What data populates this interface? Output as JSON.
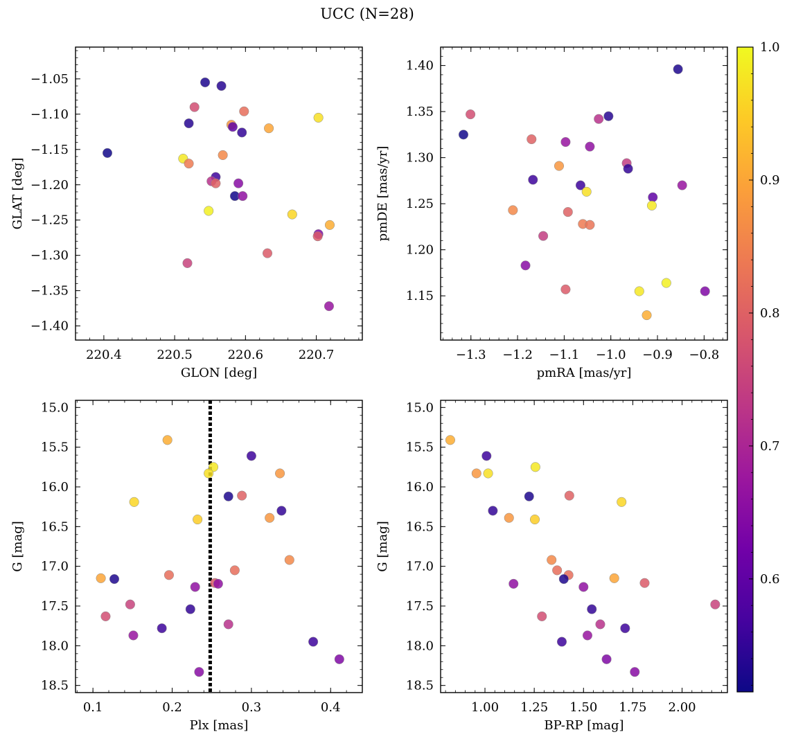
{
  "figure": {
    "title": "UCC (N=28)"
  },
  "colorbar": {
    "colormap": "plasma",
    "range": [
      0.515,
      1.0
    ],
    "ticks": [
      "0.6",
      "0.7",
      "0.8",
      "0.9",
      "1.0"
    ],
    "tick_values": [
      0.6,
      0.7,
      0.8,
      0.9,
      1.0
    ],
    "gradient_colors": [
      "#0d0887",
      "#46039f",
      "#7201a8",
      "#9c179e",
      "#bd3786",
      "#d8576b",
      "#ed7953",
      "#fb9f3a",
      "#fdca26",
      "#f0f921"
    ]
  },
  "chart_data": [
    {
      "type": "scatter",
      "id": "glon-glat",
      "xlabel": "GLON [deg]",
      "ylabel": "GLAT [deg]",
      "xlim": [
        220.36,
        220.765
      ],
      "ylim": [
        -1.42,
        -1.005
      ],
      "xticks": [
        220.4,
        220.5,
        220.6,
        220.7
      ],
      "xticklabels": [
        "220.4",
        "220.5",
        "220.6",
        "220.7"
      ],
      "yticks": [
        -1.05,
        -1.1,
        -1.15,
        -1.2,
        -1.25,
        -1.3,
        -1.35,
        -1.4
      ],
      "yticklabels": [
        "−1.05",
        "−1.10",
        "−1.15",
        "−1.20",
        "−1.25",
        "−1.30",
        "−1.35",
        "−1.40"
      ],
      "points": [
        {
          "x": 220.543,
          "y": -1.055,
          "c": 0.53
        },
        {
          "x": 220.566,
          "y": -1.06,
          "c": 0.54
        },
        {
          "x": 220.528,
          "y": -1.09,
          "c": 0.77
        },
        {
          "x": 220.598,
          "y": -1.096,
          "c": 0.82
        },
        {
          "x": 220.703,
          "y": -1.105,
          "c": 0.97
        },
        {
          "x": 220.52,
          "y": -1.113,
          "c": 0.54
        },
        {
          "x": 220.58,
          "y": -1.115,
          "c": 0.88
        },
        {
          "x": 220.582,
          "y": -1.118,
          "c": 0.6
        },
        {
          "x": 220.633,
          "y": -1.12,
          "c": 0.9
        },
        {
          "x": 220.595,
          "y": -1.126,
          "c": 0.55
        },
        {
          "x": 220.405,
          "y": -1.155,
          "c": 0.52
        },
        {
          "x": 220.568,
          "y": -1.158,
          "c": 0.86
        },
        {
          "x": 220.512,
          "y": -1.163,
          "c": 0.98
        },
        {
          "x": 220.52,
          "y": -1.17,
          "c": 0.84
        },
        {
          "x": 220.558,
          "y": -1.189,
          "c": 0.56
        },
        {
          "x": 220.552,
          "y": -1.195,
          "c": 0.72
        },
        {
          "x": 220.558,
          "y": -1.198,
          "c": 0.8
        },
        {
          "x": 220.59,
          "y": -1.198,
          "c": 0.65
        },
        {
          "x": 220.585,
          "y": -1.216,
          "c": 0.52
        },
        {
          "x": 220.596,
          "y": -1.216,
          "c": 0.66
        },
        {
          "x": 220.548,
          "y": -1.237,
          "c": 0.99
        },
        {
          "x": 220.666,
          "y": -1.242,
          "c": 0.96
        },
        {
          "x": 220.719,
          "y": -1.257,
          "c": 0.91
        },
        {
          "x": 220.703,
          "y": -1.27,
          "c": 0.64
        },
        {
          "x": 220.702,
          "y": -1.273,
          "c": 0.79
        },
        {
          "x": 220.631,
          "y": -1.297,
          "c": 0.79
        },
        {
          "x": 220.518,
          "y": -1.311,
          "c": 0.75
        },
        {
          "x": 220.718,
          "y": -1.372,
          "c": 0.67
        }
      ]
    },
    {
      "type": "scatter",
      "id": "pmra-pmde",
      "xlabel": "pmRA [mas/yr]",
      "ylabel": "pmDE [mas/yr]",
      "xlim": [
        -1.365,
        -0.75
      ],
      "ylim": [
        1.102,
        1.42
      ],
      "xticks": [
        -1.3,
        -1.2,
        -1.1,
        -1.0,
        -0.9,
        -0.8
      ],
      "xticklabels": [
        "−1.3",
        "−1.2",
        "−1.1",
        "−1.0",
        "−0.9",
        "−0.8"
      ],
      "yticks": [
        1.15,
        1.2,
        1.25,
        1.3,
        1.35,
        1.4
      ],
      "yticklabels": [
        "1.15",
        "1.20",
        "1.25",
        "1.30",
        "1.35",
        "1.40"
      ],
      "points": [
        {
          "x": -0.856,
          "y": 1.396,
          "c": 0.53
        },
        {
          "x": -1.301,
          "y": 1.347,
          "c": 0.77
        },
        {
          "x": -1.005,
          "y": 1.345,
          "c": 0.54
        },
        {
          "x": -1.026,
          "y": 1.342,
          "c": 0.72
        },
        {
          "x": -1.316,
          "y": 1.325,
          "c": 0.52
        },
        {
          "x": -1.17,
          "y": 1.32,
          "c": 0.8
        },
        {
          "x": -1.097,
          "y": 1.317,
          "c": 0.67
        },
        {
          "x": -1.045,
          "y": 1.312,
          "c": 0.66
        },
        {
          "x": -0.966,
          "y": 1.294,
          "c": 0.74
        },
        {
          "x": -1.111,
          "y": 1.291,
          "c": 0.88
        },
        {
          "x": -0.963,
          "y": 1.288,
          "c": 0.55
        },
        {
          "x": -1.167,
          "y": 1.276,
          "c": 0.56
        },
        {
          "x": -1.065,
          "y": 1.27,
          "c": 0.56
        },
        {
          "x": -0.847,
          "y": 1.27,
          "c": 0.67
        },
        {
          "x": -1.052,
          "y": 1.263,
          "c": 0.97
        },
        {
          "x": -0.91,
          "y": 1.257,
          "c": 0.6
        },
        {
          "x": -0.912,
          "y": 1.248,
          "c": 0.98
        },
        {
          "x": -1.21,
          "y": 1.243,
          "c": 0.86
        },
        {
          "x": -1.092,
          "y": 1.241,
          "c": 0.8
        },
        {
          "x": -1.06,
          "y": 1.228,
          "c": 0.84
        },
        {
          "x": -1.045,
          "y": 1.227,
          "c": 0.83
        },
        {
          "x": -1.145,
          "y": 1.215,
          "c": 0.74
        },
        {
          "x": -1.183,
          "y": 1.183,
          "c": 0.65
        },
        {
          "x": -0.881,
          "y": 1.164,
          "c": 0.99
        },
        {
          "x": -1.097,
          "y": 1.157,
          "c": 0.79
        },
        {
          "x": -0.939,
          "y": 1.155,
          "c": 0.98
        },
        {
          "x": -0.798,
          "y": 1.155,
          "c": 0.64
        },
        {
          "x": -0.923,
          "y": 1.129,
          "c": 0.91
        }
      ]
    },
    {
      "type": "scatter",
      "id": "plx-g",
      "xlabel": "Plx [mas]",
      "ylabel": "G [mag]",
      "xlim": [
        0.078,
        0.44
      ],
      "ylim": [
        18.59,
        14.91
      ],
      "xticks": [
        0.1,
        0.2,
        0.3,
        0.4
      ],
      "xticklabels": [
        "0.1",
        "0.2",
        "0.3",
        "0.4"
      ],
      "yticks": [
        15.0,
        15.5,
        16.0,
        16.5,
        17.0,
        17.5,
        18.0,
        18.5
      ],
      "yticklabels": [
        "15.0",
        "15.5",
        "16.0",
        "16.5",
        "17.0",
        "17.5",
        "18.0",
        "18.5"
      ],
      "vline": {
        "x": 0.248,
        "style": "dotted",
        "color": "#000000"
      },
      "points": [
        {
          "x": 0.194,
          "y": 15.41,
          "c": 0.91
        },
        {
          "x": 0.3,
          "y": 15.61,
          "c": 0.56
        },
        {
          "x": 0.252,
          "y": 15.75,
          "c": 0.98
        },
        {
          "x": 0.246,
          "y": 15.83,
          "c": 0.97
        },
        {
          "x": 0.336,
          "y": 15.83,
          "c": 0.88
        },
        {
          "x": 0.271,
          "y": 16.12,
          "c": 0.53
        },
        {
          "x": 0.288,
          "y": 16.11,
          "c": 0.8
        },
        {
          "x": 0.152,
          "y": 16.19,
          "c": 0.96
        },
        {
          "x": 0.338,
          "y": 16.3,
          "c": 0.55
        },
        {
          "x": 0.323,
          "y": 16.39,
          "c": 0.88
        },
        {
          "x": 0.232,
          "y": 16.41,
          "c": 0.95
        },
        {
          "x": 0.348,
          "y": 16.92,
          "c": 0.86
        },
        {
          "x": 0.279,
          "y": 17.05,
          "c": 0.82
        },
        {
          "x": 0.196,
          "y": 17.11,
          "c": 0.82
        },
        {
          "x": 0.11,
          "y": 17.15,
          "c": 0.9
        },
        {
          "x": 0.127,
          "y": 17.16,
          "c": 0.53
        },
        {
          "x": 0.254,
          "y": 17.21,
          "c": 0.79
        },
        {
          "x": 0.258,
          "y": 17.22,
          "c": 0.66
        },
        {
          "x": 0.229,
          "y": 17.26,
          "c": 0.66
        },
        {
          "x": 0.147,
          "y": 17.48,
          "c": 0.75
        },
        {
          "x": 0.223,
          "y": 17.54,
          "c": 0.55
        },
        {
          "x": 0.116,
          "y": 17.63,
          "c": 0.77
        },
        {
          "x": 0.271,
          "y": 17.73,
          "c": 0.72
        },
        {
          "x": 0.187,
          "y": 17.78,
          "c": 0.56
        },
        {
          "x": 0.151,
          "y": 17.87,
          "c": 0.67
        },
        {
          "x": 0.378,
          "y": 17.95,
          "c": 0.56
        },
        {
          "x": 0.411,
          "y": 18.17,
          "c": 0.64
        },
        {
          "x": 0.234,
          "y": 18.33,
          "c": 0.65
        }
      ]
    },
    {
      "type": "scatter",
      "id": "bprp-g",
      "xlabel": "BP-RP [mag]",
      "ylabel": "G [mag]",
      "xlim": [
        0.775,
        2.23
      ],
      "ylim": [
        18.59,
        14.91
      ],
      "xticks": [
        1.0,
        1.25,
        1.5,
        1.75,
        2.0
      ],
      "xticklabels": [
        "1.00",
        "1.25",
        "1.50",
        "1.75",
        "2.00"
      ],
      "yticks": [
        15.0,
        15.5,
        16.0,
        16.5,
        17.0,
        17.5,
        18.0,
        18.5
      ],
      "yticklabels": [
        "15.0",
        "15.5",
        "16.0",
        "16.5",
        "17.0",
        "17.5",
        "18.0",
        "18.5"
      ],
      "points": [
        {
          "x": 0.824,
          "y": 15.41,
          "c": 0.91
        },
        {
          "x": 1.008,
          "y": 15.61,
          "c": 0.56
        },
        {
          "x": 1.256,
          "y": 15.75,
          "c": 0.98
        },
        {
          "x": 0.957,
          "y": 15.83,
          "c": 0.88
        },
        {
          "x": 1.016,
          "y": 15.83,
          "c": 0.97
        },
        {
          "x": 1.224,
          "y": 16.12,
          "c": 0.53
        },
        {
          "x": 1.428,
          "y": 16.11,
          "c": 0.8
        },
        {
          "x": 1.693,
          "y": 16.19,
          "c": 0.96
        },
        {
          "x": 1.04,
          "y": 16.3,
          "c": 0.55
        },
        {
          "x": 1.122,
          "y": 16.39,
          "c": 0.88
        },
        {
          "x": 1.253,
          "y": 16.41,
          "c": 0.95
        },
        {
          "x": 1.338,
          "y": 16.92,
          "c": 0.86
        },
        {
          "x": 1.366,
          "y": 17.05,
          "c": 0.82
        },
        {
          "x": 1.424,
          "y": 17.11,
          "c": 0.82
        },
        {
          "x": 1.656,
          "y": 17.15,
          "c": 0.9
        },
        {
          "x": 1.4,
          "y": 17.16,
          "c": 0.53
        },
        {
          "x": 1.81,
          "y": 17.21,
          "c": 0.79
        },
        {
          "x": 1.145,
          "y": 17.22,
          "c": 0.66
        },
        {
          "x": 1.5,
          "y": 17.26,
          "c": 0.66
        },
        {
          "x": 2.168,
          "y": 17.48,
          "c": 0.75
        },
        {
          "x": 1.542,
          "y": 17.54,
          "c": 0.55
        },
        {
          "x": 1.289,
          "y": 17.63,
          "c": 0.77
        },
        {
          "x": 1.585,
          "y": 17.73,
          "c": 0.72
        },
        {
          "x": 1.711,
          "y": 17.78,
          "c": 0.56
        },
        {
          "x": 1.52,
          "y": 17.87,
          "c": 0.67
        },
        {
          "x": 1.39,
          "y": 17.95,
          "c": 0.56
        },
        {
          "x": 1.617,
          "y": 18.17,
          "c": 0.64
        },
        {
          "x": 1.76,
          "y": 18.33,
          "c": 0.65
        }
      ]
    }
  ]
}
